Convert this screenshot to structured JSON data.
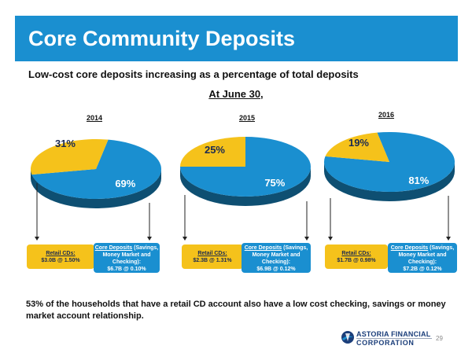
{
  "title": "Core Community Deposits",
  "subtitle": "Low-cost core deposits increasing as a percentage of total deposits",
  "period_label": "At June 30,",
  "chart_data": {
    "type": "pie",
    "charts": [
      {
        "year": "2014",
        "slices": [
          {
            "category": "Core Deposits",
            "value": 69,
            "label": "69%",
            "color": "#1a8fd0"
          },
          {
            "category": "Retail CDs",
            "value": 31,
            "label": "31%",
            "color": "#f5c21b"
          }
        ],
        "retail_box": {
          "head": "Retail CDs:",
          "detail": "$3.0B @ 1.50%"
        },
        "core_box": {
          "head": "Core Deposits",
          "rest": " (Savings, Money Market and Checking):",
          "detail": "$6.7B @ 0.10%"
        }
      },
      {
        "year": "2015",
        "slices": [
          {
            "category": "Core Deposits",
            "value": 75,
            "label": "75%",
            "color": "#1a8fd0"
          },
          {
            "category": "Retail CDs",
            "value": 25,
            "label": "25%",
            "color": "#f5c21b"
          }
        ],
        "retail_box": {
          "head": "Retail CDs:",
          "detail": "$2.3B @ 1.31%"
        },
        "core_box": {
          "head": "Core Deposits",
          "rest": " (Savings, Money Market and Checking):",
          "detail": "$6.9B @ 0.12%"
        }
      },
      {
        "year": "2016",
        "slices": [
          {
            "category": "Core Deposits",
            "value": 81,
            "label": "81%",
            "color": "#1a8fd0"
          },
          {
            "category": "Retail CDs",
            "value": 19,
            "label": "19%",
            "color": "#f5c21b"
          }
        ],
        "retail_box": {
          "head": "Retail CDs:",
          "detail": "$1.7B @ 0.98%"
        },
        "core_box": {
          "head": "Core Deposits",
          "rest": " (Savings, Money Market and Checking):",
          "detail": "$7.2B @ 0.12%"
        }
      }
    ]
  },
  "footnote": "53% of the households that have a retail CD account also have a low cost checking, savings or money market account relationship.",
  "logo": {
    "line1": "ASTORIA FINANCIAL",
    "line2": "CORPORATION"
  },
  "page_number": "29",
  "colors": {
    "brand_blue": "#1a8fd0",
    "brand_gold": "#f5c21b",
    "logo_navy": "#1b3e7a"
  }
}
